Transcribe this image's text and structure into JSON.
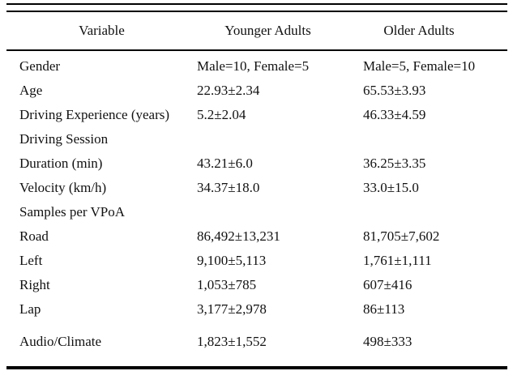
{
  "table": {
    "columns": {
      "variable": "Variable",
      "younger": "Younger Adults",
      "older": "Older Adults"
    },
    "rows": [
      {
        "label": "Gender",
        "younger": "Male=10, Female=5",
        "older": "Male=5, Female=10"
      },
      {
        "label": "Age",
        "younger": "22.93±2.34",
        "older": "65.53±3.93"
      },
      {
        "label": "Driving Experience (years)",
        "younger": "5.2±2.04",
        "older": "46.33±4.59"
      },
      {
        "label": "Driving Session",
        "younger": "",
        "older": ""
      },
      {
        "label": "Duration (min)",
        "younger": "43.21±6.0",
        "older": "36.25±3.35"
      },
      {
        "label": "Velocity (km/h)",
        "younger": "34.37±18.0",
        "older": "33.0±15.0"
      },
      {
        "label": "Samples per VPoA",
        "younger": "",
        "older": ""
      },
      {
        "label": "Road",
        "younger": "86,492±13,231",
        "older": "81,705±7,602"
      },
      {
        "label": "Left",
        "younger": "9,100±5,113",
        "older": "1,761±1,111"
      },
      {
        "label": "Right",
        "younger": "1,053±785",
        "older": "607±416"
      },
      {
        "label": "Lap",
        "younger": "3,177±2,978",
        "older": "86±113"
      },
      {
        "label": "Audio/Climate",
        "younger": "1,823±1,552",
        "older": "498±333"
      }
    ]
  },
  "colors": {
    "text": "#111111",
    "rule": "#000000",
    "background": "#ffffff"
  }
}
